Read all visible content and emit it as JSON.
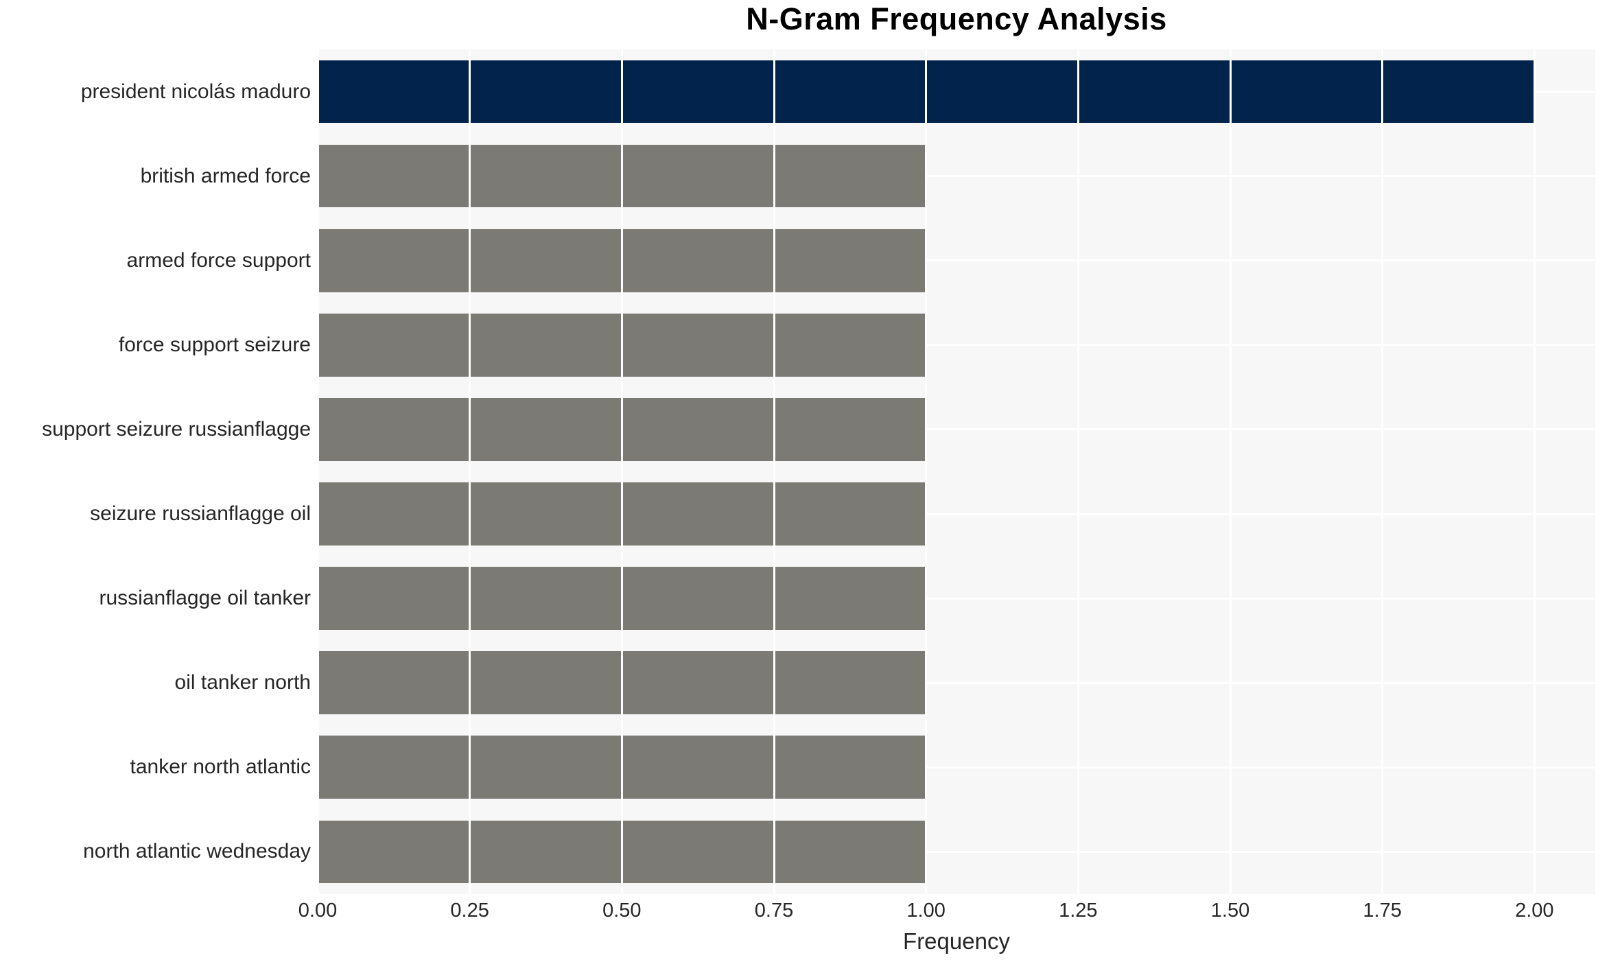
{
  "chart_data": {
    "type": "bar",
    "orientation": "horizontal",
    "title": "N-Gram Frequency Analysis",
    "xlabel": "Frequency",
    "categories": [
      "president nicolás maduro",
      "british armed force",
      "armed force support",
      "force support seizure",
      "support seizure russianflagge",
      "seizure russianflagge oil",
      "russianflagge oil tanker",
      "oil tanker north",
      "tanker north atlantic",
      "north atlantic wednesday"
    ],
    "values": [
      2,
      1,
      1,
      1,
      1,
      1,
      1,
      1,
      1,
      1
    ],
    "bar_colors": [
      "#02234C",
      "#7B7A75",
      "#7B7A75",
      "#7B7A75",
      "#7B7A75",
      "#7B7A75",
      "#7B7A75",
      "#7B7A75",
      "#7B7A75",
      "#7B7A75"
    ],
    "xticks": [
      "0.00",
      "0.25",
      "0.50",
      "0.75",
      "1.00",
      "1.25",
      "1.50",
      "1.75",
      "2.00"
    ],
    "xlim": [
      0,
      2.1
    ],
    "grid": "on",
    "legend": "none",
    "colors": {
      "plot_background": "#F7F7F7",
      "grid_color": "#FFFFFF",
      "text_color": "#262626",
      "title_color": "#000000",
      "highlight_bar": "#02234C",
      "default_bar": "#7B7A75"
    }
  }
}
